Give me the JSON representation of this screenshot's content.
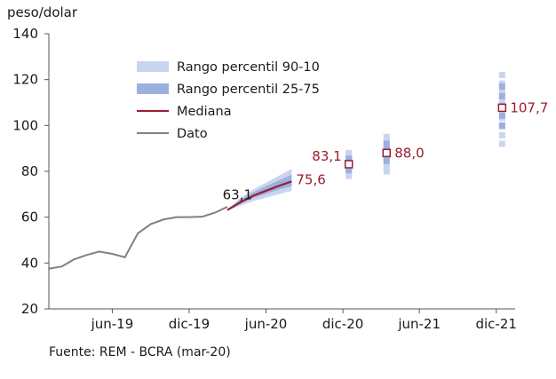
{
  "chart_data": {
    "type": "line",
    "ylabel": "peso/dolar",
    "ylim": [
      20,
      140
    ],
    "yticks": [
      20,
      40,
      60,
      80,
      100,
      120,
      140
    ],
    "xlim": [
      "2019-01-01",
      "2022-01-15"
    ],
    "xticks": [
      {
        "date": "2019-06-01",
        "label": "jun-19"
      },
      {
        "date": "2019-12-01",
        "label": "dic-19"
      },
      {
        "date": "2020-06-01",
        "label": "jun-20"
      },
      {
        "date": "2020-12-01",
        "label": "dic-20"
      },
      {
        "date": "2021-06-01",
        "label": "jun-21"
      },
      {
        "date": "2021-12-01",
        "label": "dic-21"
      }
    ],
    "legend": {
      "position": "top-left",
      "items": [
        {
          "key": "p90",
          "label": "Rango percentil 90-10"
        },
        {
          "key": "p75",
          "label": "Rango percentil 25-75"
        },
        {
          "key": "median",
          "label": "Mediana"
        },
        {
          "key": "dato",
          "label": "Dato"
        }
      ]
    },
    "colors": {
      "p90": "#c9d5ef",
      "p75": "#9cb0e0",
      "median": "#9b1b30",
      "dato": "#808080",
      "axis": "#555555",
      "text": "#1a1a1a"
    },
    "series": [
      {
        "key": "dato",
        "name": "Dato",
        "points": [
          [
            "2019-01-01",
            37.5
          ],
          [
            "2019-02-01",
            38.5
          ],
          [
            "2019-03-01",
            41.5
          ],
          [
            "2019-04-01",
            43.5
          ],
          [
            "2019-05-01",
            45.0
          ],
          [
            "2019-06-01",
            44.0
          ],
          [
            "2019-07-01",
            42.5
          ],
          [
            "2019-08-01",
            53.0
          ],
          [
            "2019-09-01",
            57.0
          ],
          [
            "2019-10-01",
            59.0
          ],
          [
            "2019-11-01",
            60.0
          ],
          [
            "2019-12-01",
            60.0
          ],
          [
            "2020-01-01",
            60.2
          ],
          [
            "2020-02-01",
            62.0
          ],
          [
            "2020-03-01",
            64.5
          ]
        ]
      },
      {
        "key": "median",
        "name": "Mediana",
        "points": [
          [
            "2020-03-01",
            63.1
          ],
          [
            "2020-04-01",
            66.5
          ],
          [
            "2020-05-01",
            69.3
          ],
          [
            "2020-06-01",
            71.5
          ],
          [
            "2020-07-01",
            73.6
          ],
          [
            "2020-08-01",
            75.6
          ]
        ]
      }
    ],
    "band_monthly": [
      {
        "date": "2020-03-01",
        "p10": 63.0,
        "p25": 63.0,
        "p75": 63.3,
        "p90": 63.3
      },
      {
        "date": "2020-04-01",
        "p10": 65.0,
        "p25": 65.8,
        "p75": 67.6,
        "p90": 68.5
      },
      {
        "date": "2020-05-01",
        "p10": 67.0,
        "p25": 68.3,
        "p75": 70.8,
        "p90": 72.0
      },
      {
        "date": "2020-06-01",
        "p10": 68.5,
        "p25": 70.2,
        "p75": 73.5,
        "p90": 75.0
      },
      {
        "date": "2020-07-01",
        "p10": 70.0,
        "p25": 72.0,
        "p75": 76.0,
        "p90": 78.0
      },
      {
        "date": "2020-08-01",
        "p10": 71.5,
        "p25": 73.5,
        "p75": 78.5,
        "p90": 81.0
      }
    ],
    "forecasts": [
      {
        "date": "2020-12-15",
        "median": 83.1,
        "median_label": "83,1",
        "p10": 78.0,
        "p25": 80.5,
        "p75": 85.5,
        "p90": 88.0
      },
      {
        "date": "2021-03-15",
        "median": 88.0,
        "median_label": "88,0",
        "p10": 80.0,
        "p25": 84.5,
        "p75": 92.0,
        "p90": 95.0
      },
      {
        "date": "2021-12-15",
        "median": 107.7,
        "median_label": "107,7",
        "p10": 92.0,
        "p25": 100.0,
        "p75": 117.0,
        "p90": 122.0
      }
    ],
    "annotations": [
      {
        "text": "63,1",
        "date": "2020-03-01",
        "value": 63.1
      },
      {
        "text": "75,6",
        "date": "2020-08-01",
        "value": 75.6
      }
    ],
    "source": "Fuente: REM - BCRA (mar-20)"
  }
}
